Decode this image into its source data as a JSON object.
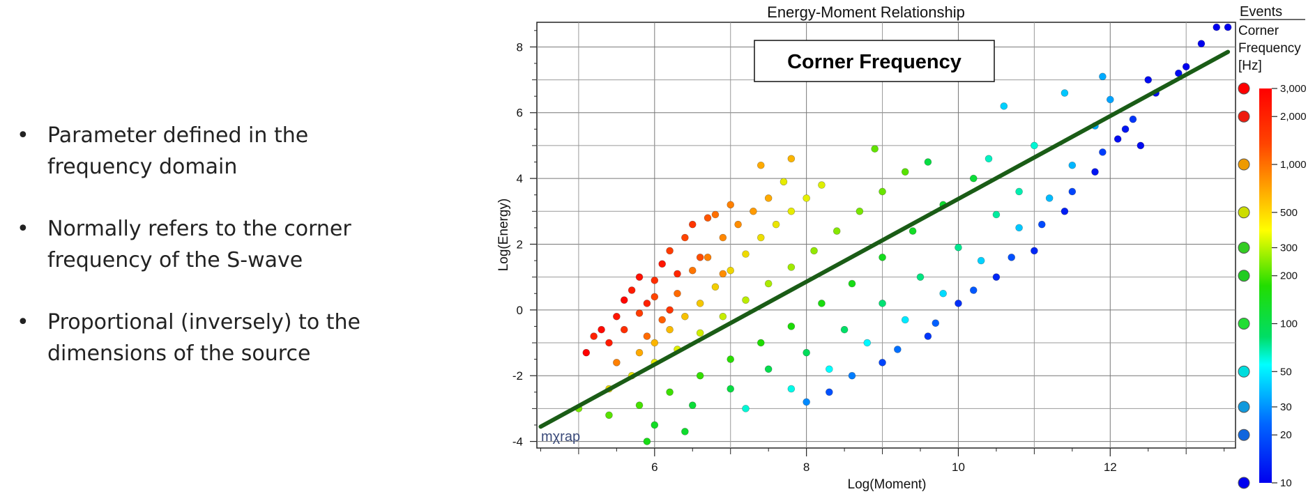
{
  "slide": {
    "bullets": [
      "Parameter defined in the frequency domain",
      "Normally refers to the corner frequency of the S-wave",
      "Proportional (inversely) to the dimensions of the source"
    ],
    "bullet_symbol": "•"
  },
  "chart_data": {
    "type": "scatter",
    "title": "Energy-Moment Relationship",
    "annotation": "Corner Frequency",
    "xlabel": "Log(Moment)",
    "ylabel": "Log(Energy)",
    "xlim": [
      4.45,
      13.65
    ],
    "ylim": [
      -4.2,
      8.75
    ],
    "x_ticks": [
      "6",
      "8",
      "10",
      "12"
    ],
    "x_tick_values": [
      6,
      8,
      10,
      12
    ],
    "y_ticks": [
      "8",
      "6",
      "4",
      "2",
      "0",
      "-2",
      "-4"
    ],
    "y_tick_values": [
      8,
      6,
      4,
      2,
      0,
      -2,
      -4
    ],
    "grid": true,
    "watermark": "mχrap",
    "fit_line": {
      "x": [
        4.5,
        13.55
      ],
      "y": [
        -3.55,
        7.85
      ],
      "color": "#1a5c16"
    },
    "legend": {
      "title": "Events",
      "subtitle": "Corner Frequency [Hz]",
      "placement": "right",
      "scale": "log",
      "tick_labels": [
        "3,000",
        "2,000",
        "1,000",
        "500",
        "300",
        "200",
        "100",
        "50",
        "30",
        "20",
        "10"
      ],
      "tick_values": [
        3000,
        2000,
        1000,
        500,
        300,
        200,
        100,
        50,
        30,
        20,
        10
      ],
      "colors": [
        "#ff0000",
        "#ee1b0e",
        "#ee9a00",
        "#ccdd00",
        "#33cc22",
        "#22cc22",
        "#22dd33",
        "#00dddd",
        "#1199dd",
        "#1166dd",
        "#0000ee"
      ]
    },
    "series": [
      {
        "points": [
          [
            5.1,
            -1.3,
            3000
          ],
          [
            5.3,
            -0.6,
            2800
          ],
          [
            5.5,
            -0.2,
            2600
          ],
          [
            5.6,
            0.3,
            2900
          ],
          [
            5.7,
            0.6,
            2500
          ],
          [
            5.8,
            1.0,
            2700
          ],
          [
            5.9,
            0.2,
            2400
          ],
          [
            6.0,
            0.9,
            2200
          ],
          [
            6.1,
            1.4,
            2600
          ],
          [
            6.2,
            1.8,
            2000
          ],
          [
            6.3,
            1.1,
            2300
          ],
          [
            6.4,
            2.2,
            1900
          ],
          [
            6.5,
            2.6,
            2100
          ],
          [
            6.6,
            1.6,
            1800
          ],
          [
            6.7,
            2.8,
            1700
          ],
          [
            5.4,
            -1.0,
            2500
          ],
          [
            5.6,
            -0.6,
            2200
          ],
          [
            5.8,
            -0.1,
            2000
          ],
          [
            6.0,
            0.4,
            1900
          ],
          [
            6.2,
            0.0,
            2100
          ],
          [
            5.2,
            -0.8,
            2400
          ],
          [
            5.9,
            -0.8,
            1500
          ],
          [
            6.1,
            -0.3,
            1600
          ],
          [
            6.3,
            0.5,
            1500
          ],
          [
            6.5,
            1.2,
            1400
          ],
          [
            6.7,
            1.6,
            1300
          ],
          [
            6.9,
            2.2,
            1250
          ],
          [
            7.1,
            2.6,
            1200
          ],
          [
            7.3,
            3.0,
            1100
          ],
          [
            7.5,
            3.4,
            1000
          ],
          [
            7.4,
            4.4,
            1000
          ],
          [
            7.8,
            4.6,
            900
          ],
          [
            6.8,
            2.9,
            1450
          ],
          [
            7.0,
            3.2,
            1300
          ],
          [
            6.9,
            1.1,
            1200
          ],
          [
            5.5,
            -1.6,
            1300
          ],
          [
            5.8,
            -1.3,
            1000
          ],
          [
            6.0,
            -1.0,
            900
          ],
          [
            6.2,
            -0.6,
            850
          ],
          [
            6.4,
            -0.2,
            800
          ],
          [
            6.6,
            0.2,
            750
          ],
          [
            6.8,
            0.7,
            700
          ],
          [
            7.0,
            1.2,
            650
          ],
          [
            7.2,
            1.7,
            620
          ],
          [
            7.4,
            2.2,
            600
          ],
          [
            7.6,
            2.6,
            560
          ],
          [
            7.8,
            3.0,
            520
          ],
          [
            8.0,
            3.4,
            500
          ],
          [
            8.2,
            3.8,
            480
          ],
          [
            7.7,
            3.9,
            520
          ],
          [
            5.4,
            -2.4,
            620
          ],
          [
            5.7,
            -2.0,
            560
          ],
          [
            6.0,
            -1.6,
            520
          ],
          [
            6.3,
            -1.2,
            480
          ],
          [
            6.6,
            -0.7,
            450
          ],
          [
            6.9,
            -0.2,
            430
          ],
          [
            7.2,
            0.3,
            410
          ],
          [
            7.5,
            0.8,
            380
          ],
          [
            7.8,
            1.3,
            360
          ],
          [
            8.1,
            1.8,
            340
          ],
          [
            8.4,
            2.4,
            320
          ],
          [
            8.7,
            3.0,
            300
          ],
          [
            9.0,
            3.6,
            280
          ],
          [
            9.3,
            4.2,
            260
          ],
          [
            8.9,
            4.9,
            270
          ],
          [
            5.0,
            -3.0,
            300
          ],
          [
            5.4,
            -3.2,
            260
          ],
          [
            5.8,
            -2.9,
            240
          ],
          [
            6.2,
            -2.5,
            230
          ],
          [
            6.6,
            -2.0,
            220
          ],
          [
            7.0,
            -1.5,
            210
          ],
          [
            7.4,
            -1.0,
            200
          ],
          [
            7.8,
            -0.5,
            190
          ],
          [
            8.2,
            0.2,
            180
          ],
          [
            8.6,
            0.8,
            170
          ],
          [
            9.0,
            1.6,
            160
          ],
          [
            9.4,
            2.4,
            150
          ],
          [
            9.8,
            3.2,
            140
          ],
          [
            10.2,
            4.0,
            130
          ],
          [
            9.6,
            4.5,
            120
          ],
          [
            6.0,
            -3.5,
            150
          ],
          [
            6.5,
            -2.9,
            130
          ],
          [
            7.0,
            -2.4,
            120
          ],
          [
            7.5,
            -1.8,
            110
          ],
          [
            8.0,
            -1.3,
            100
          ],
          [
            8.5,
            -0.6,
            95
          ],
          [
            9.0,
            0.2,
            90
          ],
          [
            9.5,
            1.0,
            85
          ],
          [
            10.0,
            1.9,
            80
          ],
          [
            10.5,
            2.9,
            75
          ],
          [
            10.8,
            3.6,
            70
          ],
          [
            10.4,
            4.6,
            65
          ],
          [
            11.0,
            5.0,
            60
          ],
          [
            5.9,
            -4.0,
            170
          ],
          [
            6.4,
            -3.7,
            140
          ],
          [
            7.2,
            -3.0,
            60
          ],
          [
            7.8,
            -2.4,
            55
          ],
          [
            8.3,
            -1.8,
            50
          ],
          [
            8.8,
            -1.0,
            48
          ],
          [
            9.3,
            -0.3,
            45
          ],
          [
            9.8,
            0.5,
            42
          ],
          [
            10.3,
            1.5,
            40
          ],
          [
            10.8,
            2.5,
            38
          ],
          [
            11.2,
            3.4,
            36
          ],
          [
            11.5,
            4.4,
            35
          ],
          [
            11.8,
            5.6,
            33
          ],
          [
            12.0,
            6.4,
            32
          ],
          [
            10.6,
            6.2,
            40
          ],
          [
            11.4,
            6.6,
            38
          ],
          [
            11.9,
            7.1,
            33
          ],
          [
            8.0,
            -2.8,
            28
          ],
          [
            8.6,
            -2.0,
            26
          ],
          [
            9.2,
            -1.2,
            24
          ],
          [
            9.7,
            -0.4,
            22
          ],
          [
            10.2,
            0.6,
            21
          ],
          [
            10.7,
            1.6,
            20
          ],
          [
            11.1,
            2.6,
            19
          ],
          [
            11.5,
            3.6,
            18
          ],
          [
            11.9,
            4.8,
            17
          ],
          [
            12.3,
            5.8,
            16
          ],
          [
            8.3,
            -2.5,
            20
          ],
          [
            9.0,
            -1.6,
            18
          ],
          [
            9.6,
            -0.8,
            16
          ],
          [
            10.0,
            0.2,
            15
          ],
          [
            10.5,
            1.0,
            14
          ],
          [
            11.0,
            1.8,
            14
          ],
          [
            11.4,
            3.0,
            13
          ],
          [
            11.8,
            4.2,
            12
          ],
          [
            12.2,
            5.5,
            12
          ],
          [
            12.6,
            6.6,
            11
          ],
          [
            12.1,
            5.2,
            11
          ],
          [
            12.5,
            7.0,
            11
          ],
          [
            12.9,
            7.2,
            11
          ],
          [
            13.2,
            8.1,
            10
          ],
          [
            13.4,
            8.6,
            10
          ],
          [
            13.55,
            8.6,
            10
          ],
          [
            13.0,
            7.4,
            10
          ],
          [
            12.4,
            5.0,
            11
          ]
        ]
      }
    ]
  }
}
